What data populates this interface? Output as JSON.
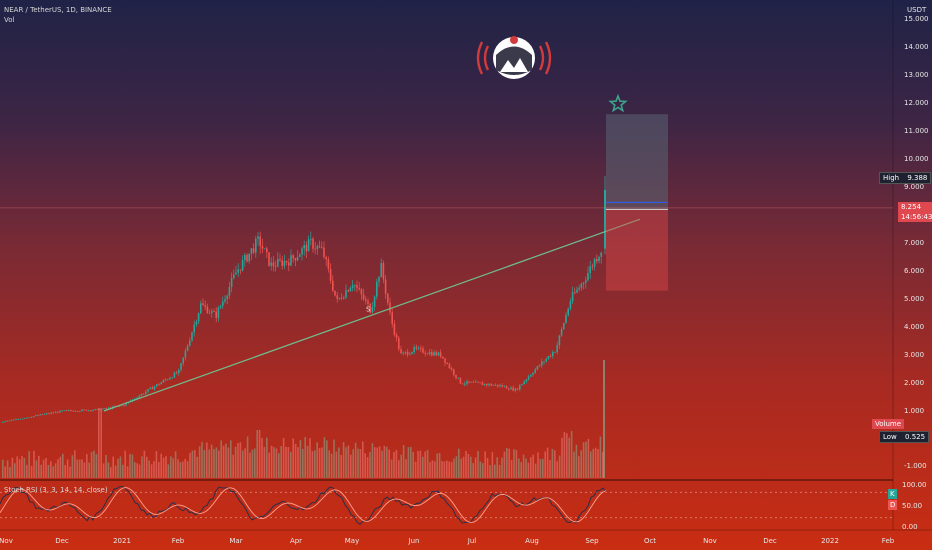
{
  "header": {
    "symbol_line": "NEAR / TetherUS, 1D, BINANCE",
    "volume_label": "Vol",
    "stoch_label": "Stoch RSI (3, 3, 14, 14, close)"
  },
  "price_axis": {
    "currency": "USDT",
    "ticks": [
      "15.000",
      "14.000",
      "13.000",
      "12.000",
      "11.000",
      "10.000",
      "9.000",
      "7.000",
      "6.000",
      "5.000",
      "4.000",
      "3.000",
      "2.000",
      "1.000",
      "-1.000"
    ]
  },
  "stoch_axis": {
    "ticks": [
      "100.00",
      "50.00",
      "0.00"
    ]
  },
  "time_axis": {
    "ticks": [
      "Nov",
      "Dec",
      "2021",
      "Feb",
      "Mar",
      "Apr",
      "May",
      "Jun",
      "Jul",
      "Aug",
      "Sep",
      "Oct",
      "Nov",
      "Dec",
      "2022",
      "Feb"
    ]
  },
  "tags": {
    "high_label": "High",
    "high_value": "9.388",
    "current_value": "8.254",
    "countdown": "14:56:43",
    "volume_label": "Volume",
    "low_label": "Low",
    "low_value": "0.525",
    "k_label": "K",
    "d_label": "D"
  },
  "annotations": {
    "s_marker": "S"
  },
  "colors": {
    "up": "#26a69a",
    "down": "#ef5350",
    "trendline": "#6fbf8e",
    "star": "#3aa38a"
  },
  "chart_data": {
    "type": "candlestick",
    "title": "NEAR / TetherUS, 1D, BINANCE",
    "ylabel": "USDT",
    "ylim": [
      0,
      15
    ],
    "y_ticks": [
      15,
      14,
      13,
      12,
      11,
      10,
      9,
      7,
      6,
      5,
      4,
      3,
      2,
      1,
      -1
    ],
    "x_ticks": [
      "Nov",
      "Dec",
      "2021",
      "Feb",
      "Mar",
      "Apr",
      "May",
      "Jun",
      "Jul",
      "Aug",
      "Sep",
      "Oct",
      "Nov",
      "Dec",
      "2022",
      "Feb"
    ],
    "close_path_monthly": [
      {
        "x": "Nov",
        "close": 0.6
      },
      {
        "x": "Dec",
        "close": 1.0
      },
      {
        "x": "2021",
        "close": 1.2
      },
      {
        "x": "Feb",
        "close": 2.4
      },
      {
        "x": "Mar",
        "close": 6.6
      },
      {
        "x": "Apr",
        "close": 6.8
      },
      {
        "x": "May",
        "close": 4.9
      },
      {
        "x": "Jun",
        "close": 3.2
      },
      {
        "x": "Jul",
        "close": 2.0
      },
      {
        "x": "Aug",
        "close": 2.4
      },
      {
        "x": "Sep",
        "close": 8.25
      }
    ],
    "high": 9.388,
    "low": 0.525,
    "last": 8.254,
    "trendline": {
      "from": {
        "x": "Dec",
        "y": 1.0
      },
      "to": {
        "x": "Sep",
        "y": 7.8
      }
    },
    "position_box": {
      "entry": 8.2,
      "target": 11.6,
      "stop": 5.3
    },
    "stoch_rsi": {
      "levels": [
        80,
        20
      ],
      "range": [
        0,
        100
      ]
    }
  }
}
